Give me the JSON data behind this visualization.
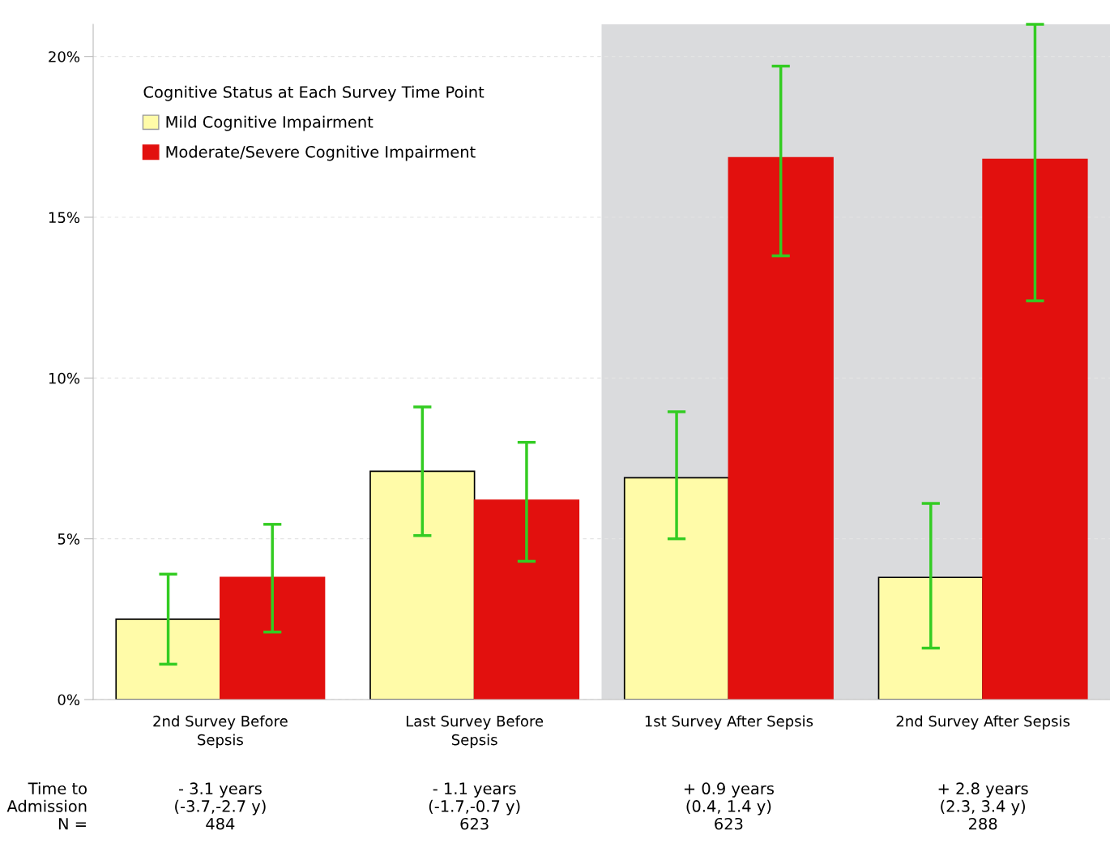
{
  "chart_data": {
    "type": "bar",
    "categories": [
      "2nd Survey Before\nSepsis",
      "Last Survey Before\nSepsis",
      "1st Survey After Sepsis",
      "2nd Survey After Sepsis"
    ],
    "series": [
      {
        "name": "Mild Cognitive Impairment",
        "color": "#fffba8",
        "values": [
          2.5,
          7.1,
          6.9,
          3.8
        ],
        "errors": [
          [
            1.1,
            3.9
          ],
          [
            5.1,
            9.1
          ],
          [
            5.0,
            8.95
          ],
          [
            1.6,
            6.1
          ]
        ]
      },
      {
        "name": "Moderate/Severe Cognitive Impairment",
        "color": "#e2100e",
        "values": [
          3.8,
          6.2,
          16.85,
          16.8
        ],
        "errors": [
          [
            2.1,
            5.45
          ],
          [
            4.3,
            8.0
          ],
          [
            13.8,
            19.7
          ],
          [
            12.4,
            21.0
          ]
        ]
      }
    ],
    "legend_title": "Cognitive Status at Each Survey Time Point",
    "legend": "top left",
    "ylim": [
      0,
      21
    ],
    "yticks": [
      {
        "value": 0,
        "label": "0%"
      },
      {
        "value": 5,
        "label": "5%"
      },
      {
        "value": 10,
        "label": "10%"
      },
      {
        "value": 15,
        "label": "15%"
      },
      {
        "value": 20,
        "label": "20%"
      }
    ],
    "grid": "y",
    "annotations": [
      "Time to\nAdmission\nN =",
      "- 3.1 years\n(-3.7,-2.7 y)\n484",
      "- 1.1 years\n(-1.7,-0.7 y)\n623",
      "+ 0.9 years\n(0.4, 1.4 y)\n623",
      "+ 2.8 years\n(2.3, 3.4 y)\n288"
    ]
  }
}
